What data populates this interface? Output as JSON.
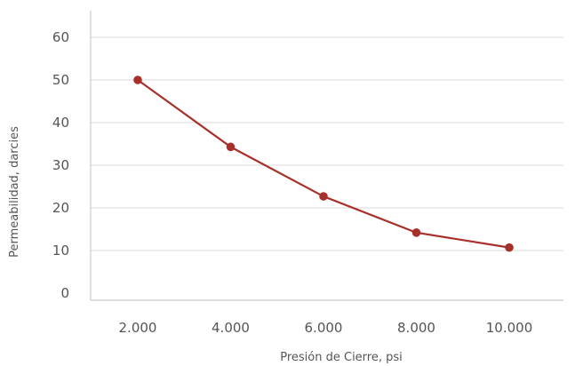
{
  "chart_data": {
    "type": "line",
    "title": "",
    "xlabel": "Presión de Cierre, psi",
    "ylabel": "Permeabilidad, darcies",
    "x_tick_labels": [
      "2.000",
      "4.000",
      "6.000",
      "8.000",
      "10.000"
    ],
    "y_tick_labels": [
      "0",
      "10",
      "20",
      "30",
      "40",
      "50",
      "60"
    ],
    "y_ticks": [
      0,
      10,
      20,
      30,
      40,
      50,
      60
    ],
    "ylim": [
      0,
      60
    ],
    "grid": "horizontal",
    "series": [
      {
        "color": "#a8302a",
        "x": [
          2000,
          4000,
          6000,
          8000,
          10000
        ],
        "values": [
          50,
          34.3,
          22.7,
          14.2,
          10.7
        ]
      }
    ]
  }
}
